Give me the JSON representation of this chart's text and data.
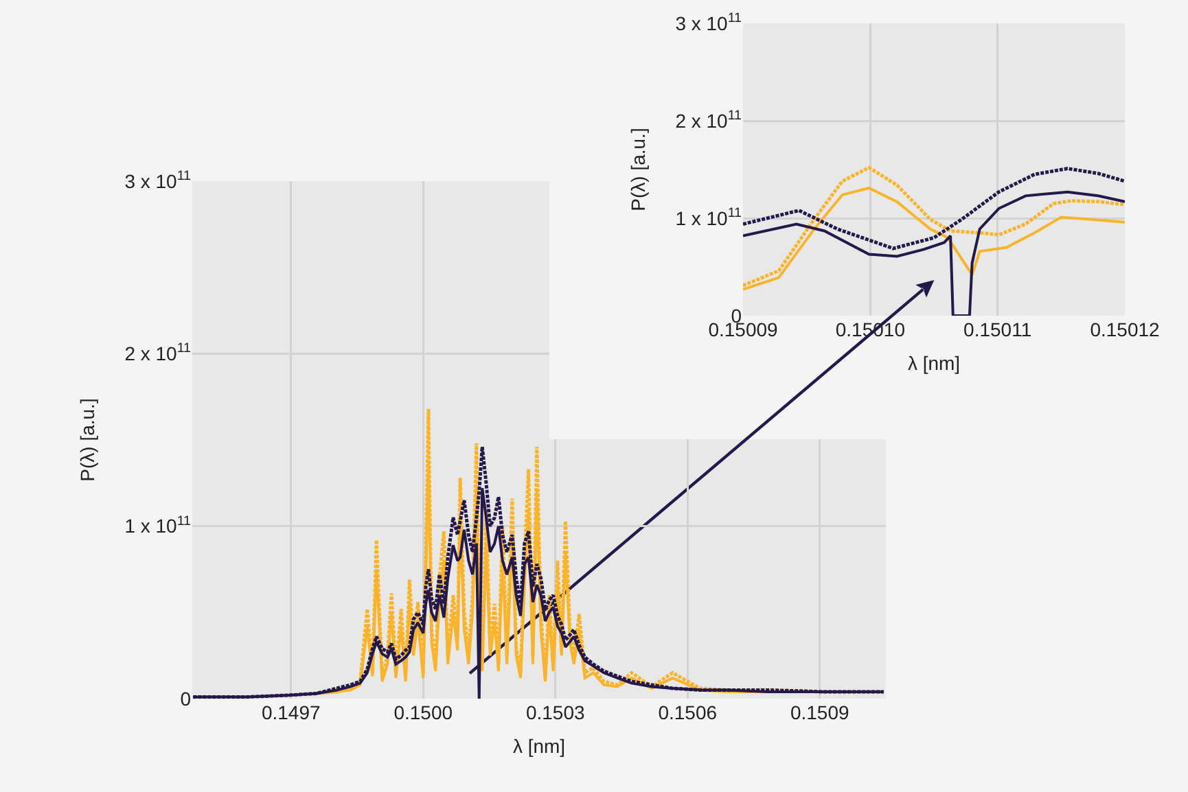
{
  "chart_data": [
    {
      "type": "line",
      "xlabel": "λ [nm]",
      "ylabel": "P(λ) [a.u.]",
      "xlim": [
        0.149476,
        0.15105
      ],
      "xticks": [
        0.1497,
        {
          "value": 0.15,
          "label": "0.1500"
        },
        0.1503,
        0.1506,
        0.1509
      ],
      "ylim": [
        0,
        300000000000.0
      ],
      "yticks": [
        0,
        {
          "value": 100000000000.0,
          "label": "1 x 10$^{11}$"
        },
        {
          "value": 200000000000.0,
          "label": "2 x 10$^{11}$"
        },
        {
          "value": 300000000000.0,
          "label": "3 x 10$^{11}$"
        }
      ],
      "grid": true,
      "x": [
        0.149478,
        0.149602,
        0.149695,
        0.149757,
        0.149804,
        0.149835,
        0.149857,
        0.149873,
        0.149885,
        0.149894,
        0.149907,
        0.149919,
        0.149928,
        0.149938,
        0.14995,
        0.14996,
        0.149969,
        0.149978,
        0.149988,
        0.15,
        0.150006,
        0.150012,
        0.150019,
        0.150028,
        0.150037,
        0.150047,
        0.150056,
        0.150068,
        0.150078,
        0.150084,
        0.150093,
        0.150103,
        0.150112,
        0.150121,
        0.150127,
        0.150134,
        0.150143,
        0.150152,
        0.150162,
        0.150171,
        0.15018,
        0.15019,
        0.150202,
        0.150211,
        0.150221,
        0.15023,
        0.150239,
        0.150249,
        0.150258,
        0.150267,
        0.150277,
        0.150286,
        0.150295,
        0.150305,
        0.150314,
        0.150323,
        0.150333,
        0.150342,
        0.150354,
        0.150367,
        0.150386,
        0.15041,
        0.150441,
        0.150473,
        0.150519,
        0.150566,
        0.150628,
        0.15069,
        0.150783,
        0.150908,
        0.151045
      ],
      "series": [
        {
          "color": "#f9b42c",
          "line_style": "dotted",
          "values": [
            null,
            null,
            null,
            3000000000.0,
            4000000000.0,
            6000000000.0,
            10000000000.0,
            52000000000.0,
            15000000000.0,
            92000000000.0,
            12000000000.0,
            25000000000.0,
            61000000000.0,
            15000000000.0,
            52000000000.0,
            12000000000.0,
            69000000000.0,
            30000000000.0,
            56000000000.0,
            15000000000.0,
            85000000000.0,
            168000000000.0,
            40000000000.0,
            20000000000.0,
            70000000000.0,
            97000000000.0,
            25000000000.0,
            60000000000.0,
            35000000000.0,
            128000000000.0,
            50000000000.0,
            25000000000.0,
            60000000000.0,
            148000000000.0,
            40000000000.0,
            20000000000.0,
            110000000000.0,
            30000000000.0,
            55000000000.0,
            20000000000.0,
            100000000000.0,
            25000000000.0,
            116000000000.0,
            30000000000.0,
            15000000000.0,
            80000000000.0,
            133000000000.0,
            25000000000.0,
            146000000000.0,
            50000000000.0,
            12000000000.0,
            60000000000.0,
            20000000000.0,
            80000000000.0,
            30000000000.0,
            103000000000.0,
            40000000000.0,
            25000000000.0,
            49000000000.0,
            15000000000.0,
            18000000000.0,
            10000000000.0,
            8000000000.0,
            15000000000.0,
            7000000000.0,
            15000000000.0,
            6000000000.0,
            5000000000.0,
            5000000000.0,
            4000000000.0,
            4000000000.0
          ]
        },
        {
          "color": "#f9b42c",
          "line_style": "solid",
          "values": [
            null,
            null,
            null,
            3000000000.0,
            4000000000.0,
            5000000000.0,
            8000000000.0,
            42000000000.0,
            13000000000.0,
            75000000000.0,
            10000000000.0,
            20000000000.0,
            50000000000.0,
            12000000000.0,
            42000000000.0,
            10000000000.0,
            56000000000.0,
            25000000000.0,
            46000000000.0,
            12000000000.0,
            70000000000.0,
            138000000000.0,
            33000000000.0,
            16000000000.0,
            58000000000.0,
            80000000000.0,
            20000000000.0,
            50000000000.0,
            28000000000.0,
            105000000000.0,
            40000000000.0,
            20000000000.0,
            50000000000.0,
            122000000000.0,
            33000000000.0,
            16000000000.0,
            90000000000.0,
            25000000000.0,
            45000000000.0,
            16000000000.0,
            82000000000.0,
            20000000000.0,
            95000000000.0,
            25000000000.0,
            12000000000.0,
            66000000000.0,
            110000000000.0,
            20000000000.0,
            120000000000.0,
            40000000000.0,
            10000000000.0,
            50000000000.0,
            16000000000.0,
            66000000000.0,
            25000000000.0,
            85000000000.0,
            33000000000.0,
            20000000000.0,
            40000000000.0,
            12000000000.0,
            15000000000.0,
            8000000000.0,
            7000000000.0,
            12000000000.0,
            6000000000.0,
            12000000000.0,
            5000000000.0,
            4000000000.0,
            4000000000.0,
            4000000000.0,
            4000000000.0
          ]
        },
        {
          "color": "#24194a",
          "line_style": "dotted",
          "values": [
            1000000000.0,
            1000000000.0,
            2000000000.0,
            3000000000.0,
            6000000000.0,
            8000000000.0,
            10000000000.0,
            17000000000.0,
            29000000000.0,
            36000000000.0,
            29000000000.0,
            27000000000.0,
            32000000000.0,
            23000000000.0,
            25000000000.0,
            28000000000.0,
            30000000000.0,
            46000000000.0,
            50000000000.0,
            43000000000.0,
            65000000000.0,
            75000000000.0,
            58000000000.0,
            52000000000.0,
            72000000000.0,
            55000000000.0,
            82000000000.0,
            105000000000.0,
            95000000000.0,
            103000000000.0,
            115000000000.0,
            95000000000.0,
            85000000000.0,
            105000000000.0,
            120000000000.0,
            146000000000.0,
            125000000000.0,
            100000000000.0,
            105000000000.0,
            117000000000.0,
            95000000000.0,
            85000000000.0,
            95000000000.0,
            70000000000.0,
            55000000000.0,
            90000000000.0,
            97000000000.0,
            65000000000.0,
            78000000000.0,
            70000000000.0,
            52000000000.0,
            57000000000.0,
            60000000000.0,
            48000000000.0,
            43000000000.0,
            34000000000.0,
            37000000000.0,
            40000000000.0,
            31000000000.0,
            24000000000.0,
            20000000000.0,
            16000000000.0,
            13000000000.0,
            10000000000.0,
            8000000000.0,
            6000000000.0,
            5000000000.0,
            5000000000.0,
            5000000000.0,
            4000000000.0,
            4000000000.0
          ]
        },
        {
          "color": "#24194a",
          "line_style": "solid",
          "values": [
            1000000000.0,
            1000000000.0,
            2000000000.0,
            3000000000.0,
            5000000000.0,
            7000000000.0,
            9000000000.0,
            15000000000.0,
            26000000000.0,
            33000000000.0,
            26000000000.0,
            24000000000.0,
            29000000000.0,
            20000000000.0,
            22000000000.0,
            24000000000.0,
            27000000000.0,
            40000000000.0,
            44000000000.0,
            38000000000.0,
            55000000000.0,
            63000000000.0,
            50000000000.0,
            45000000000.0,
            60000000000.0,
            47000000000.0,
            70000000000.0,
            89000000000.0,
            80000000000.0,
            82000000000.0,
            98000000000.0,
            80000000000.0,
            72000000000.0,
            90000000000.0,
            0,
            122000000000.0,
            105000000000.0,
            85000000000.0,
            90000000000.0,
            100000000000.0,
            80000000000.0,
            72000000000.0,
            82000000000.0,
            60000000000.0,
            48000000000.0,
            78000000000.0,
            82000000000.0,
            56000000000.0,
            66000000000.0,
            60000000000.0,
            45000000000.0,
            50000000000.0,
            53000000000.0,
            42000000000.0,
            38000000000.0,
            30000000000.0,
            33000000000.0,
            36000000000.0,
            28000000000.0,
            22000000000.0,
            19000000000.0,
            15000000000.0,
            12000000000.0,
            9000000000.0,
            7000000000.0,
            6000000000.0,
            5000000000.0,
            5000000000.0,
            4000000000.0,
            4000000000.0,
            4000000000.0
          ]
        }
      ]
    },
    {
      "type": "line",
      "xlabel": "λ [nm]",
      "ylabel": "P(λ) [a.u.]",
      "xlim": [
        0.15009,
        0.15012
      ],
      "xticks": [
        0.15009,
        {
          "value": 0.1501,
          "label": "0.15010"
        },
        0.15011,
        0.15012
      ],
      "ylim": [
        0,
        300000000000.0
      ],
      "yticks": [
        0,
        {
          "value": 100000000000.0,
          "label": "1 x 10$^{11}$"
        },
        {
          "value": 200000000000.0,
          "label": "2 x 10$^{11}$"
        },
        {
          "value": 300000000000.0,
          "label": "3 x 10$^{11}$"
        }
      ],
      "grid": true,
      "series": [
        {
          "color": "#f9b42c",
          "line_style": "dotted",
          "x": [
            0.15009,
            0.1500928,
            0.1500956,
            0.1500978,
            0.1500999,
            0.1501021,
            0.1501047,
            0.1501063,
            0.1501086,
            0.1501101,
            0.1501122,
            0.1501144,
            0.1501158,
            0.1501179,
            0.15012
          ],
          "values": [
            31000000000.0,
            46000000000.0,
            99000000000.0,
            138000000000.0,
            152000000000.0,
            134000000000.0,
            99000000000.0,
            87000000000.0,
            85000000000.0,
            83000000000.0,
            94000000000.0,
            115000000000.0,
            118000000000.0,
            117000000000.0,
            114000000000.0
          ]
        },
        {
          "color": "#f9b42c",
          "line_style": "solid",
          "x": [
            0.15009,
            0.1500928,
            0.1500956,
            0.1500978,
            0.1500999,
            0.1501021,
            0.1501047,
            0.1501061,
            0.150108,
            0.1501086,
            0.1501107,
            0.1501129,
            0.150115,
            0.1501172,
            0.15012
          ],
          "values": [
            27000000000.0,
            39000000000.0,
            89000000000.0,
            124000000000.0,
            131000000000.0,
            117000000000.0,
            89000000000.0,
            80000000000.0,
            42000000000.0,
            66000000000.0,
            70000000000.0,
            85000000000.0,
            101000000000.0,
            99000000000.0,
            96000000000.0
          ]
        },
        {
          "color": "#24194a",
          "line_style": "dotted",
          "x": [
            0.15009,
            0.1500944,
            0.1500974,
            0.1501018,
            0.150105,
            0.1501072,
            0.1501101,
            0.1501129,
            0.1501155,
            0.1501179,
            0.15012
          ],
          "values": [
            94000000000.0,
            108000000000.0,
            89000000000.0,
            69000000000.0,
            80000000000.0,
            99000000000.0,
            127000000000.0,
            145000000000.0,
            151000000000.0,
            146000000000.0,
            138000000000.0
          ]
        },
        {
          "color": "#24194a",
          "line_style": "solid",
          "x": [
            0.15009,
            0.1500942,
            0.1500964,
            0.1500999,
            0.1501021,
            0.1501042,
            0.1501058,
            0.1501063,
            0.1501065,
            0.1501078,
            0.150108,
            0.1501086,
            0.1501101,
            0.1501122,
            0.1501155,
            0.1501179,
            0.15012
          ],
          "values": [
            82000000000.0,
            94000000000.0,
            87000000000.0,
            63000000000.0,
            61000000000.0,
            68000000000.0,
            75000000000.0,
            82000000000.0,
            0,
            0,
            54000000000.0,
            89000000000.0,
            110000000000.0,
            123000000000.0,
            127000000000.0,
            123000000000.0,
            117000000000.0
          ]
        }
      ]
    }
  ]
}
